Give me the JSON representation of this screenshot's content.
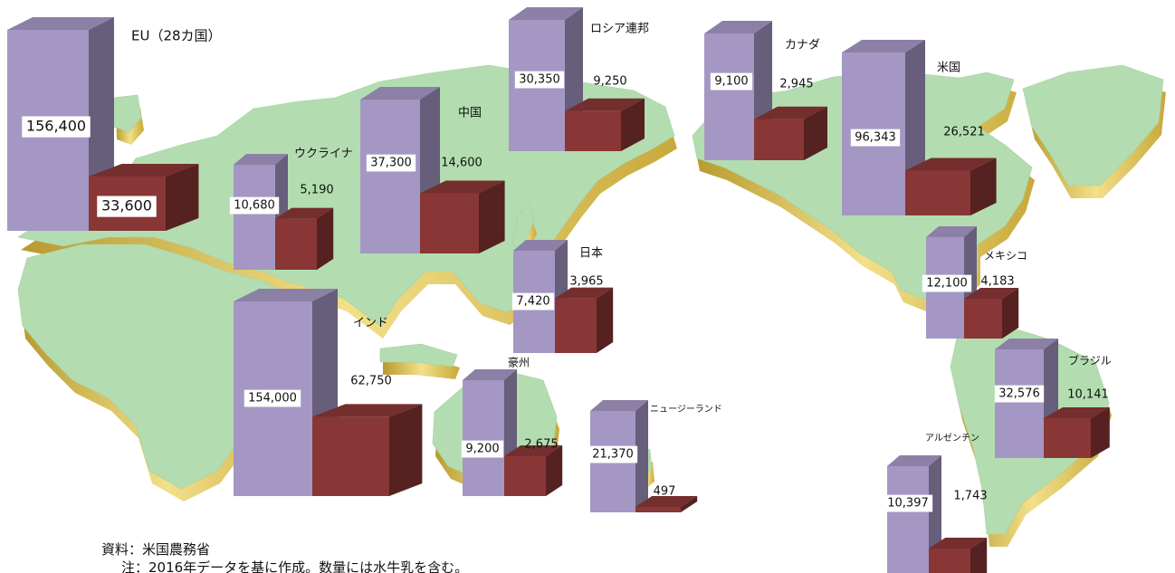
{
  "chart_data": {
    "type": "bar",
    "style": "3d-bars-on-world-map",
    "series_colors": {
      "first": "#a597c4",
      "second": "#893636"
    },
    "land_color": "#b3ddb0",
    "extrude_color": "#d9c36a",
    "regions": [
      {
        "name": "EU（28カ国）",
        "values": [
          156400,
          33600
        ],
        "labels": [
          "156,400",
          "33,600"
        ]
      },
      {
        "name": "ロシア連邦",
        "values": [
          30350,
          9250
        ],
        "labels": [
          "30,350",
          "9,250"
        ]
      },
      {
        "name": "カナダ",
        "values": [
          9100,
          2945
        ],
        "labels": [
          "9,100",
          "2,945"
        ]
      },
      {
        "name": "米国",
        "values": [
          96343,
          26521
        ],
        "labels": [
          "96,343",
          "26,521"
        ]
      },
      {
        "name": "中国",
        "values": [
          37300,
          14600
        ],
        "labels": [
          "37,300",
          "14,600"
        ]
      },
      {
        "name": "ウクライナ",
        "values": [
          10680,
          5190
        ],
        "labels": [
          "10,680",
          "5,190"
        ]
      },
      {
        "name": "日本",
        "values": [
          7420,
          3965
        ],
        "labels": [
          "7,420",
          "3,965"
        ]
      },
      {
        "name": "メキシコ",
        "values": [
          12100,
          4183
        ],
        "labels": [
          "12,100",
          "4,183"
        ]
      },
      {
        "name": "インド",
        "values": [
          154000,
          62750
        ],
        "labels": [
          "154,000",
          "62,750"
        ]
      },
      {
        "name": "豪州",
        "values": [
          9200,
          2675
        ],
        "labels": [
          "9,200",
          "2,675"
        ]
      },
      {
        "name": "ニュージーランド",
        "values": [
          21370,
          497
        ],
        "labels": [
          "21,370",
          "497"
        ]
      },
      {
        "name": "ブラジル",
        "values": [
          32576,
          10141
        ],
        "labels": [
          "32,576",
          "10,141"
        ]
      },
      {
        "name": "アルゼンチン",
        "values": [
          10397,
          1743
        ],
        "labels": [
          "10,397",
          "1,743"
        ]
      }
    ]
  },
  "footer": {
    "source": "資料：米国農務省",
    "note": "注：2016年データを基に作成。数量には水牛乳を含む。"
  }
}
